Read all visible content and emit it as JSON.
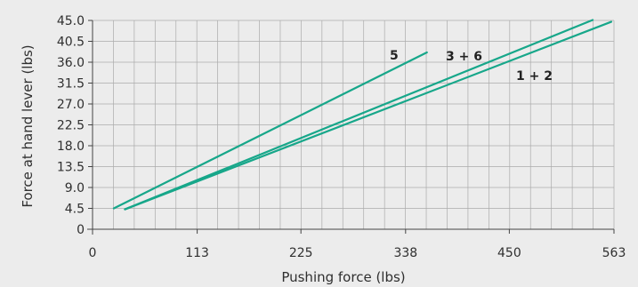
{
  "chart_data": {
    "type": "line",
    "title": "",
    "xlabel": "Pushing force (lbs)",
    "ylabel": "Force at hand lever (lbs)",
    "xlim": [
      0,
      563
    ],
    "ylim": [
      0,
      45.0
    ],
    "xticks": [
      "0",
      "113",
      "225",
      "338",
      "450",
      "563"
    ],
    "yticks": [
      "0",
      "4.5",
      "9.0",
      "13.5",
      "18.0",
      "22.5",
      "27.0",
      "31.5",
      "36.0",
      "40.5",
      "45.0"
    ],
    "grid": true,
    "series": [
      {
        "name": "5",
        "x": [
          23,
          361
        ],
        "y": [
          4.5,
          38.1
        ]
      },
      {
        "name": "3+6",
        "x": [
          35,
          540
        ],
        "y": [
          4.3,
          45.1
        ]
      },
      {
        "name": "1+2",
        "x": [
          35,
          560
        ],
        "y": [
          4.3,
          44.7
        ]
      }
    ],
    "label_text": {
      "s5": "5",
      "s36": "3 + 6",
      "s12": "1 + 2"
    }
  },
  "colors": {
    "line": "#17a78a",
    "grid": "#ababab",
    "axis": "#444444",
    "background": "#ececec"
  }
}
